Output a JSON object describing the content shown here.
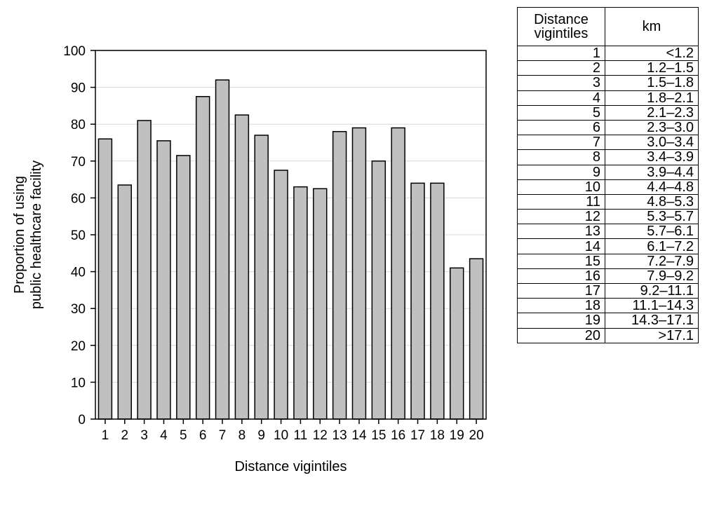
{
  "chart_data": {
    "type": "bar",
    "title": "",
    "xlabel": "Distance vigintiles",
    "ylabel_lines": [
      "Proportion of using",
      "public healthcare facility"
    ],
    "ylim": [
      0,
      100
    ],
    "yticks": [
      0,
      10,
      20,
      30,
      40,
      50,
      60,
      70,
      80,
      90,
      100
    ],
    "categories": [
      "1",
      "2",
      "3",
      "4",
      "5",
      "6",
      "7",
      "8",
      "9",
      "10",
      "11",
      "12",
      "13",
      "14",
      "15",
      "16",
      "17",
      "18",
      "19",
      "20"
    ],
    "values": [
      76,
      63.5,
      81,
      75.5,
      71.5,
      87.5,
      92,
      82.5,
      77,
      67.5,
      63,
      62.5,
      78,
      79,
      70,
      79,
      64,
      64,
      41,
      43.5
    ],
    "grid": true,
    "bar_color": "#c0c0c0"
  },
  "table": {
    "headers": [
      "Distance vigintiles",
      "km"
    ],
    "rows": [
      [
        "1",
        "<1.2"
      ],
      [
        "2",
        "1.2–1.5"
      ],
      [
        "3",
        "1.5–1.8"
      ],
      [
        "4",
        "1.8–2.1"
      ],
      [
        "5",
        "2.1–2.3"
      ],
      [
        "6",
        "2.3–3.0"
      ],
      [
        "7",
        "3.0–3.4"
      ],
      [
        "8",
        "3.4–3.9"
      ],
      [
        "9",
        "3.9–4.4"
      ],
      [
        "10",
        "4.4–4.8"
      ],
      [
        "11",
        "4.8–5.3"
      ],
      [
        "12",
        "5.3–5.7"
      ],
      [
        "13",
        "5.7–6.1"
      ],
      [
        "14",
        "6.1–7.2"
      ],
      [
        "15",
        "7.2–7.9"
      ],
      [
        "16",
        "7.9–9.2"
      ],
      [
        "17",
        "9.2–11.1"
      ],
      [
        "18",
        "11.1–14.3"
      ],
      [
        "19",
        "14.3–17.1"
      ],
      [
        "20",
        ">17.1"
      ]
    ]
  }
}
